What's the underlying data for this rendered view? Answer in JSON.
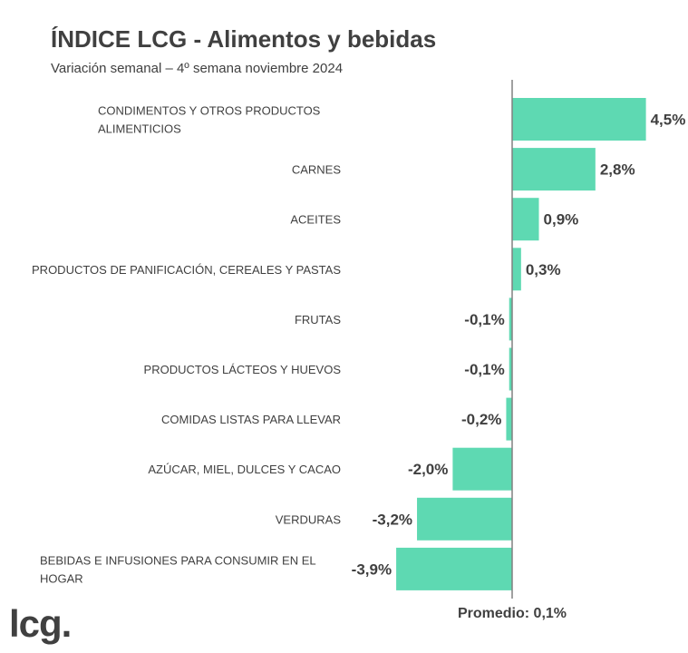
{
  "header": {
    "title": "ÍNDICE LCG - Alimentos y bebidas",
    "subtitle": "Variación semanal – 4º semana noviembre 2024"
  },
  "footer": {
    "logo_text": "lcg."
  },
  "chart_data": {
    "type": "bar",
    "orientation": "horizontal",
    "title": "ÍNDICE LCG - Alimentos y bebidas",
    "subtitle": "Variación semanal – 4º semana noviembre 2024",
    "categories": [
      [
        "CONDIMENTOS Y OTROS PRODUCTOS",
        "ALIMENTICIOS"
      ],
      [
        "CARNES"
      ],
      [
        "ACEITES"
      ],
      [
        "PRODUCTOS DE PANIFICACIÓN, CEREALES Y PASTAS"
      ],
      [
        "FRUTAS"
      ],
      [
        "PRODUCTOS LÁCTEOS Y HUEVOS"
      ],
      [
        "COMIDAS LISTAS PARA LLEVAR"
      ],
      [
        "AZÚCAR, MIEL, DULCES Y CACAO"
      ],
      [
        "VERDURAS"
      ],
      [
        "BEBIDAS E INFUSIONES PARA CONSUMIR EN EL",
        "HOGAR"
      ]
    ],
    "values": [
      4.5,
      2.8,
      0.9,
      0.3,
      -0.1,
      -0.1,
      -0.2,
      -2.0,
      -3.2,
      -3.9
    ],
    "value_labels": [
      "4,5%",
      "2,8%",
      "0,9%",
      "0,3%",
      "-0,1%",
      "-0,1%",
      "-0,2%",
      "-2,0%",
      "-3,2%",
      "-3,9%"
    ],
    "bar_color": "#5ed9b2",
    "axis_line_color": "#808080",
    "average": {
      "value": 0.1,
      "label": "Promedio: 0,1%"
    },
    "grid": false,
    "legend": "none"
  }
}
